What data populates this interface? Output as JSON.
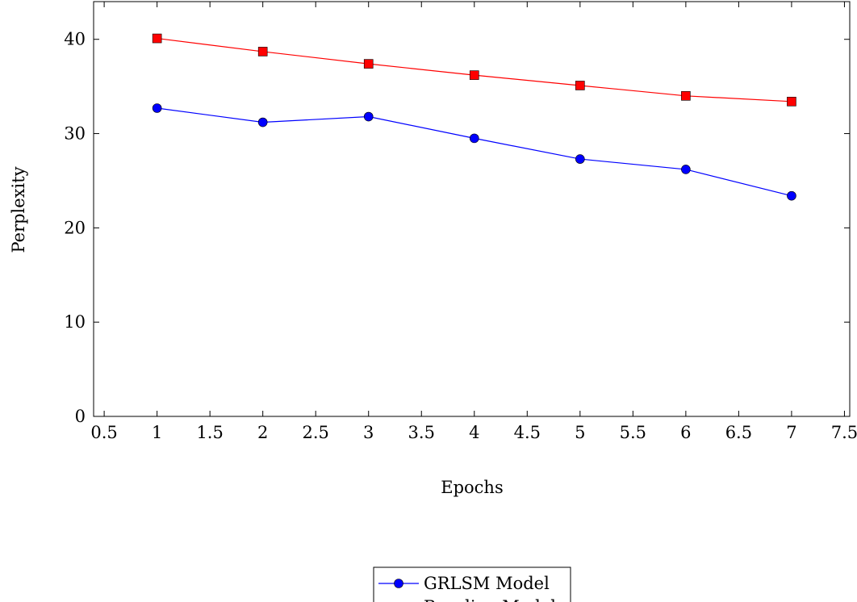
{
  "chart_data": {
    "type": "line",
    "title": "",
    "xlabel": "Epochs",
    "ylabel": "Perplexity",
    "xlim": [
      0.4,
      7.55
    ],
    "ylim": [
      0,
      44
    ],
    "x_ticks": [
      0.5,
      1,
      1.5,
      2,
      2.5,
      3,
      3.5,
      4,
      4.5,
      5,
      5.5,
      6,
      6.5,
      7,
      7.5
    ],
    "x_tick_labels": [
      "0.5",
      "1",
      "1.5",
      "2",
      "2.5",
      "3",
      "3.5",
      "4",
      "4.5",
      "5",
      "5.5",
      "6",
      "6.5",
      "7",
      "7.5"
    ],
    "y_ticks": [
      0,
      10,
      20,
      30,
      40
    ],
    "y_tick_labels": [
      "0",
      "10",
      "20",
      "30",
      "40"
    ],
    "grid": false,
    "legend_position": "bottom-center, below plot",
    "x": [
      1,
      2,
      3,
      4,
      5,
      6,
      7
    ],
    "series": [
      {
        "name": "GRLSM Model",
        "color": "#0000ff",
        "marker": "circle",
        "values": [
          32.7,
          31.2,
          31.8,
          29.5,
          27.3,
          26.2,
          23.4
        ]
      },
      {
        "name": "Baseline Model",
        "color": "#ff0000",
        "marker": "square",
        "values": [
          40.1,
          38.7,
          37.4,
          36.2,
          35.1,
          34.0,
          33.4
        ]
      }
    ]
  }
}
